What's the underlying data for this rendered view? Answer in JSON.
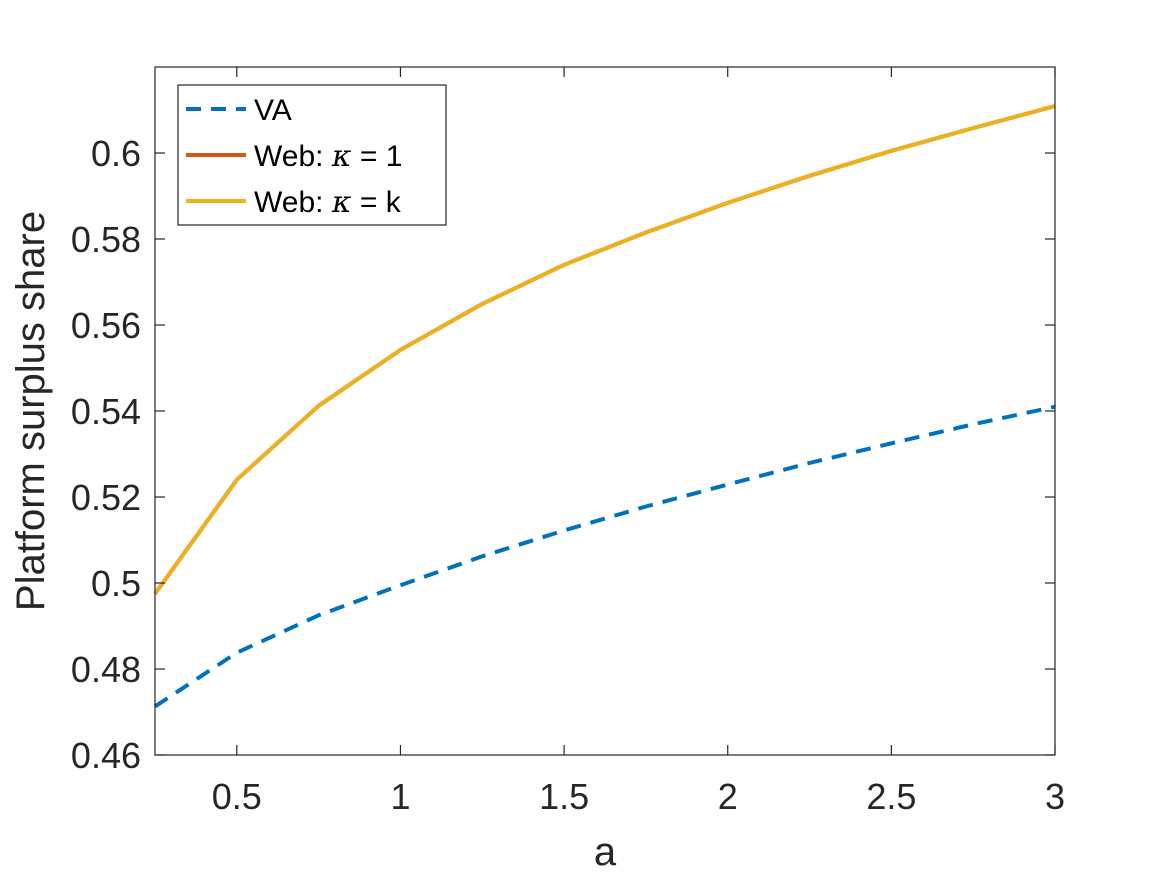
{
  "chart_data": {
    "type": "line",
    "xlabel": "a",
    "ylabel": "Platform surplus share",
    "xlim": [
      0.25,
      3
    ],
    "ylim": [
      0.46,
      0.62
    ],
    "xticks": [
      0.5,
      1,
      1.5,
      2,
      2.5,
      3
    ],
    "xtick_labels": [
      "0.5",
      "1",
      "1.5",
      "2",
      "2.5",
      "3"
    ],
    "yticks": [
      0.46,
      0.48,
      0.5,
      0.52,
      0.54,
      0.56,
      0.58,
      0.6
    ],
    "ytick_labels": [
      "0.46",
      "0.48",
      "0.5",
      "0.52",
      "0.54",
      "0.56",
      "0.58",
      "0.6"
    ],
    "grid": false,
    "legend_position": "top-left",
    "x": [
      0.25,
      0.5,
      0.75,
      1,
      1.25,
      1.5,
      1.75,
      2,
      2.25,
      2.5,
      2.75,
      3
    ],
    "series": [
      {
        "name": "VA",
        "legend_prefix": "VA",
        "legend_symbol": "",
        "legend_suffix": "",
        "color": "#0072BD",
        "dash": "dashed",
        "values": [
          0.4713,
          0.4838,
          0.4925,
          0.4995,
          0.5062,
          0.5122,
          0.5178,
          0.5229,
          0.5279,
          0.5325,
          0.5369,
          0.541
        ]
      },
      {
        "name": "Web: κ = 1",
        "legend_prefix": "Web: ",
        "legend_symbol": "κ",
        "legend_suffix": " = 1",
        "color": "#D95319",
        "dash": "solid",
        "values": [
          0.4975,
          0.524,
          0.5412,
          0.5542,
          0.5649,
          0.574,
          0.5815,
          0.5884,
          0.5947,
          0.6005,
          0.6058,
          0.6109
        ]
      },
      {
        "name": "Web: κ = k",
        "legend_prefix": "Web: ",
        "legend_symbol": "κ",
        "legend_suffix": " = k",
        "color": "#EDB120",
        "dash": "solid",
        "values": [
          0.4975,
          0.524,
          0.5412,
          0.5542,
          0.5649,
          0.574,
          0.5815,
          0.5884,
          0.5947,
          0.6005,
          0.6058,
          0.6109
        ]
      }
    ]
  }
}
